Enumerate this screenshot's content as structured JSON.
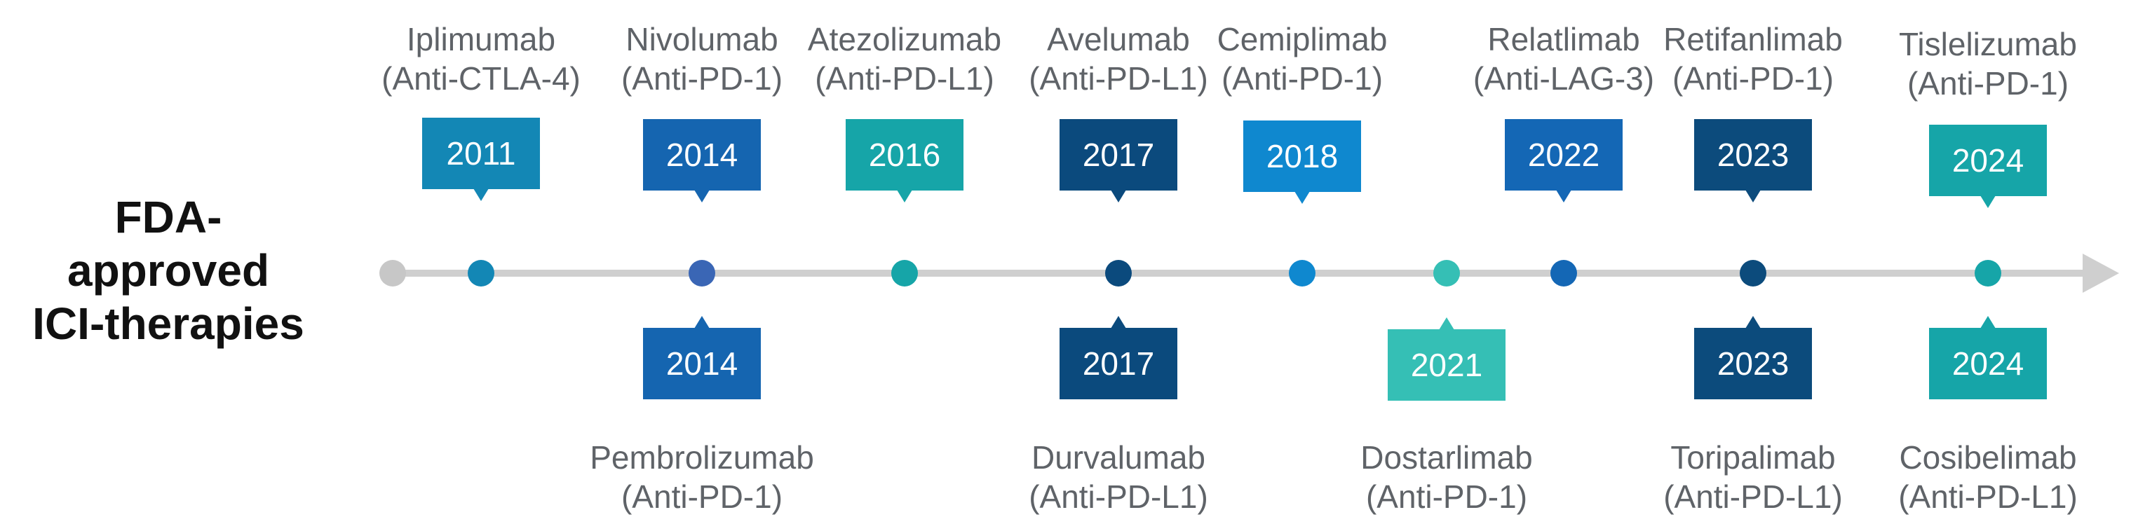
{
  "title": {
    "line1": "FDA-approved",
    "line2": "ICI-therapies"
  },
  "colors": {
    "axis": "#cfcfcf",
    "start_dot": "#c7c7c7",
    "label_text": "#5f6368"
  },
  "top_events": [
    {
      "drug": "Iplimumab",
      "target": "(Anti-CTLA-4)",
      "year": "2011",
      "color": "#1387b5"
    },
    {
      "drug": "Nivolumab",
      "target": "(Anti-PD-1)",
      "year": "2014",
      "color": "#1565b0"
    },
    {
      "drug": "Atezolizumab",
      "target": "(Anti-PD-L1)",
      "year": "2016",
      "color": "#16a5a8"
    },
    {
      "drug": "Avelumab",
      "target": "(Anti-PD-L1)",
      "year": "2017",
      "color": "#0b4a7d"
    },
    {
      "drug": "Cemiplimab",
      "target": "(Anti-PD-1)",
      "year": "2018",
      "color": "#0f88cf"
    },
    {
      "drug": "Relatlimab",
      "target": "(Anti-LAG-3)",
      "year": "2022",
      "color": "#1467b5"
    },
    {
      "drug": "Retifanlimab",
      "target": "(Anti-PD-1)",
      "year": "2023",
      "color": "#0c4b7c"
    },
    {
      "drug": "Tislelizumab",
      "target": "(Anti-PD-1)",
      "year": "2024",
      "color": "#16a5a8"
    }
  ],
  "bottom_events": [
    {
      "drug": "Pembrolizumab",
      "target": "(Anti-PD-1)",
      "year": "2014",
      "color": "#1565b0"
    },
    {
      "drug": "Durvalumab",
      "target": "(Anti-PD-L1)",
      "year": "2017",
      "color": "#0b4a7d"
    },
    {
      "drug": "Dostarlimab",
      "target": "(Anti-PD-1)",
      "year": "2021",
      "color": "#35bfb5"
    },
    {
      "drug": "Toripalimab",
      "target": "(Anti-PD-L1)",
      "year": "2023",
      "color": "#0c4b7c"
    },
    {
      "drug": "Cosibelimab",
      "target": "(Anti-PD-L1)",
      "year": "2024",
      "color": "#16a5a8"
    }
  ],
  "dot_colors": [
    "#c7c7c7",
    "#1387b5",
    "#3a66b5",
    "#16a5a8",
    "#0b4a7d",
    "#0f88cf",
    "#35bfb5",
    "#1467b5",
    "#0c4b7c",
    "#16a5a8"
  ]
}
